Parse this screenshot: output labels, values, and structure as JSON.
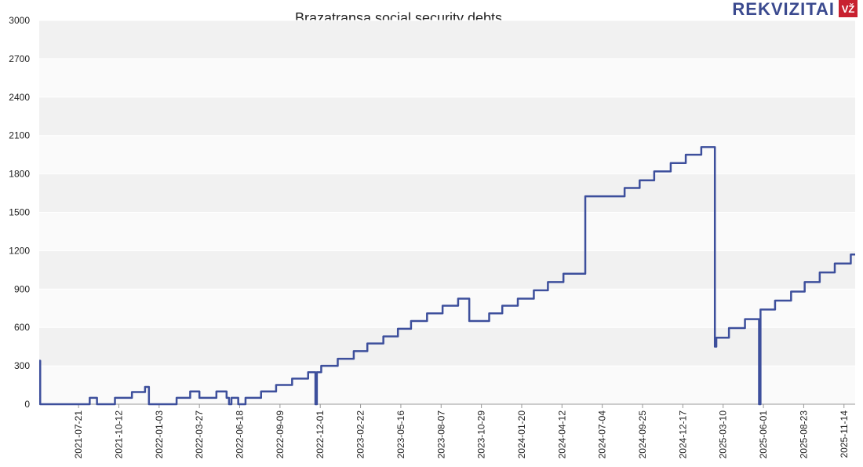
{
  "logo": {
    "text": "REKVIZITAI",
    "badge": "VŽ"
  },
  "chart_data": {
    "type": "line",
    "title": "Brazatransa social security debts",
    "step": true,
    "color": "#3d4f9c",
    "grid": true,
    "x": [
      "2021-05-01",
      "2021-05-03",
      "2021-08-13",
      "2021-08-28",
      "2021-10-04",
      "2021-11-08",
      "2021-12-05",
      "2021-12-13",
      "2022-02-08",
      "2022-03-08",
      "2022-03-27",
      "2022-05-01",
      "2022-05-22",
      "2022-05-27",
      "2022-06-01",
      "2022-06-15",
      "2022-06-30",
      "2022-08-01",
      "2022-09-01",
      "2022-10-04",
      "2022-11-06",
      "2022-11-21",
      "2022-11-24",
      "2022-12-03",
      "2023-01-06",
      "2023-02-08",
      "2023-03-08",
      "2023-04-10",
      "2023-05-10",
      "2023-06-06",
      "2023-07-09",
      "2023-08-10",
      "2023-09-11",
      "2023-10-04",
      "2023-11-14",
      "2023-12-11",
      "2024-01-12",
      "2024-02-14",
      "2024-03-14",
      "2024-04-15",
      "2024-05-30",
      "2024-08-19",
      "2024-09-19",
      "2024-10-19",
      "2024-11-22",
      "2024-12-23",
      "2025-01-24",
      "2025-02-21",
      "2025-02-24",
      "2025-03-22",
      "2025-04-24",
      "2025-05-23",
      "2025-05-26",
      "2025-06-25",
      "2025-07-28",
      "2025-08-25",
      "2025-09-25",
      "2025-10-26",
      "2025-11-28",
      "2025-12-07"
    ],
    "values": [
      340,
      0,
      50,
      0,
      50,
      95,
      135,
      0,
      50,
      100,
      50,
      100,
      50,
      0,
      50,
      0,
      50,
      100,
      150,
      200,
      250,
      0,
      250,
      300,
      355,
      415,
      475,
      530,
      590,
      650,
      710,
      770,
      825,
      650,
      710,
      770,
      825,
      890,
      955,
      1020,
      1625,
      1690,
      1750,
      1820,
      1885,
      1950,
      2010,
      450,
      520,
      595,
      665,
      0,
      740,
      810,
      880,
      955,
      1030,
      1100,
      1170,
      1170
    ],
    "xlim": [
      "2021-05-01",
      "2025-12-07"
    ],
    "xticks": [
      "2021-07-21",
      "2021-10-12",
      "2022-01-03",
      "2022-03-27",
      "2022-06-18",
      "2022-09-09",
      "2022-12-01",
      "2023-02-22",
      "2023-05-16",
      "2023-08-07",
      "2023-10-29",
      "2024-01-20",
      "2024-04-12",
      "2024-07-04",
      "2024-09-25",
      "2024-12-17",
      "2025-03-10",
      "2025-06-01",
      "2025-08-23",
      "2025-11-14"
    ],
    "ylim": [
      0,
      3000
    ],
    "yticks": [
      0,
      300,
      600,
      900,
      1200,
      1500,
      1800,
      2100,
      2400,
      2700,
      3000
    ]
  }
}
